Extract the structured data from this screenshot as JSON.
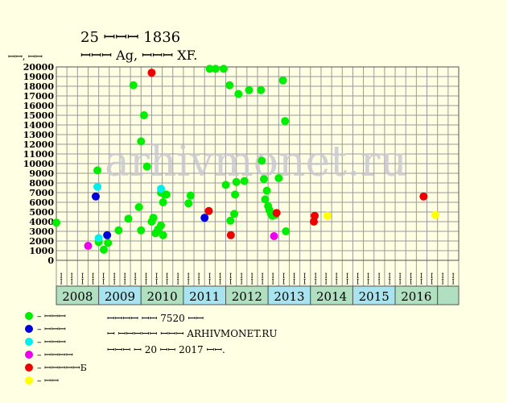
{
  "header": {
    "title": "25 ꟷꟷꟷ 1836",
    "subtitle": "ꟷꟷꟷ Ag, ꟷꟷꟷ XF.",
    "ylabel": "ꟷꟷ, ꟷꟷ"
  },
  "watermark": "arhivmonet.ru",
  "footer": {
    "line1": "ꟷꟷꟷꟷ ꟷꟷ 7520 ꟷꟷ",
    "line2": "ꟷ ꟷꟷꟷꟷꟷ ꟷꟷꟷ ARHIVMONET.RU",
    "line3": "ꟷꟷꟷ ꟷ 20 ꟷꟷ 2017 ꟷꟷ."
  },
  "legend": [
    {
      "key": "g",
      "label": "– ꟷꟷꟷ",
      "color": "#00ee00"
    },
    {
      "key": "b",
      "label": "– ꟷꟷꟷ",
      "color": "#0000dd"
    },
    {
      "key": "c",
      "label": "– ꟷꟷꟷ",
      "color": "#00eeee"
    },
    {
      "key": "m",
      "label": "– ꟷꟷꟷꟷ",
      "color": "#ee00ee"
    },
    {
      "key": "r",
      "label": "– ꟷꟷꟷꟷꟷБ",
      "color": "#ee0000"
    },
    {
      "key": "y",
      "label": "– ꟷꟷ",
      "color": "#ffff00"
    }
  ],
  "chart_data": {
    "type": "scatter",
    "ylim": [
      0,
      20000
    ],
    "yticks": [
      "0",
      "1000",
      "2000",
      "3000",
      "4000",
      "5000",
      "6000",
      "7000",
      "8000",
      "9000",
      "10000",
      "11000",
      "12000",
      "13000",
      "14000",
      "15000",
      "16000",
      "17000",
      "18000",
      "19000",
      "20000"
    ],
    "x_range": [
      2007.5,
      2017.0
    ],
    "month_labels": [
      "ꟷꟷ",
      "ꟷꟷ",
      "ꟷꟷ",
      "ꟷꟷ",
      "ꟷꟷ",
      "ꟷꟷ",
      "ꟷꟷ",
      "ꟷꟷ",
      "ꟷꟷ",
      "ꟷꟷ",
      "ꟷꟷ",
      "ꟷꟷ",
      "ꟷꟷ",
      "ꟷꟷ",
      "ꟷꟷ",
      "ꟷꟷ",
      "ꟷꟷ",
      "ꟷꟷ",
      "ꟷꟷ",
      "ꟷꟷ",
      "ꟷꟷ",
      "ꟷꟷ",
      "ꟷꟷ",
      "ꟷꟷ",
      "ꟷꟷ",
      "ꟷꟷ",
      "ꟷꟷ",
      "ꟷꟷ",
      "ꟷꟷ",
      "ꟷꟷ",
      "ꟷꟷ",
      "ꟷꟷ",
      "ꟷꟷ",
      "ꟷꟷ",
      "ꟷꟷ",
      "ꟷꟷ",
      "ꟷꟷ",
      "ꟷꟷ"
    ],
    "years": [
      {
        "label": "2008",
        "start": 2007.5,
        "end": 2008.5,
        "color": "#b0e0c0"
      },
      {
        "label": "2009",
        "start": 2008.5,
        "end": 2009.5,
        "color": "#a8e4f0"
      },
      {
        "label": "2010",
        "start": 2009.5,
        "end": 2010.5,
        "color": "#b0e0c0"
      },
      {
        "label": "2011",
        "start": 2010.5,
        "end": 2011.5,
        "color": "#a8e4f0"
      },
      {
        "label": "2012",
        "start": 2011.5,
        "end": 2012.5,
        "color": "#b0e0c0"
      },
      {
        "label": "2013",
        "start": 2012.5,
        "end": 2013.5,
        "color": "#a8e4f0"
      },
      {
        "label": "2014",
        "start": 2013.5,
        "end": 2014.5,
        "color": "#b0e0c0"
      },
      {
        "label": "2015",
        "start": 2014.5,
        "end": 2015.5,
        "color": "#a8e4f0"
      },
      {
        "label": "2016",
        "start": 2015.5,
        "end": 2016.5,
        "color": "#b0e0c0"
      },
      {
        "label": "",
        "start": 2016.5,
        "end": 2017.0,
        "color": "#b0e0c0"
      }
    ],
    "series": [
      {
        "key": "g",
        "points": [
          [
            2007.5,
            3900
          ],
          [
            2008.47,
            9300
          ],
          [
            2008.5,
            1900
          ],
          [
            2008.62,
            1100
          ],
          [
            2008.72,
            1800
          ],
          [
            2008.97,
            3100
          ],
          [
            2009.2,
            4300
          ],
          [
            2009.32,
            18100
          ],
          [
            2009.45,
            5500
          ],
          [
            2009.5,
            12300
          ],
          [
            2009.5,
            3100
          ],
          [
            2009.57,
            15000
          ],
          [
            2009.64,
            9700
          ],
          [
            2009.75,
            4000
          ],
          [
            2009.79,
            4400
          ],
          [
            2009.84,
            2800
          ],
          [
            2009.9,
            3200
          ],
          [
            2009.97,
            3600
          ],
          [
            2009.97,
            7000
          ],
          [
            2010.02,
            6000
          ],
          [
            2010.02,
            2600
          ],
          [
            2010.06,
            6800
          ],
          [
            2010.1,
            6800
          ],
          [
            2010.62,
            5900
          ],
          [
            2010.67,
            6700
          ],
          [
            2011.12,
            19800
          ],
          [
            2011.26,
            19800
          ],
          [
            2011.45,
            19800
          ],
          [
            2011.5,
            7800
          ],
          [
            2011.59,
            18100
          ],
          [
            2011.61,
            4100
          ],
          [
            2011.7,
            4800
          ],
          [
            2011.72,
            6800
          ],
          [
            2011.75,
            8100
          ],
          [
            2011.8,
            17200
          ],
          [
            2011.94,
            8200
          ],
          [
            2012.05,
            17600
          ],
          [
            2012.33,
            17600
          ],
          [
            2012.35,
            10300
          ],
          [
            2012.4,
            8400
          ],
          [
            2012.43,
            6300
          ],
          [
            2012.47,
            7200
          ],
          [
            2012.5,
            5600
          ],
          [
            2012.53,
            5200
          ],
          [
            2012.57,
            4800
          ],
          [
            2012.6,
            4600
          ],
          [
            2012.67,
            4700
          ],
          [
            2012.75,
            8500
          ],
          [
            2012.85,
            18600
          ],
          [
            2012.9,
            14400
          ],
          [
            2012.92,
            3000
          ]
        ]
      },
      {
        "key": "b",
        "points": [
          [
            2008.43,
            6600
          ],
          [
            2008.7,
            2600
          ],
          [
            2011.0,
            4400
          ]
        ]
      },
      {
        "key": "c",
        "points": [
          [
            2008.47,
            7600
          ],
          [
            2008.5,
            2300
          ],
          [
            2009.97,
            7400
          ]
        ]
      },
      {
        "key": "m",
        "points": [
          [
            2008.25,
            1500
          ],
          [
            2012.64,
            2500
          ]
        ]
      },
      {
        "key": "r",
        "points": [
          [
            2009.75,
            19400
          ],
          [
            2011.1,
            5100
          ],
          [
            2011.62,
            2600
          ],
          [
            2012.7,
            4900
          ],
          [
            2013.58,
            4000
          ],
          [
            2013.6,
            4600
          ],
          [
            2016.17,
            6600
          ]
        ]
      },
      {
        "key": "y",
        "points": [
          [
            2013.9,
            4600
          ],
          [
            2016.45,
            4700
          ]
        ]
      }
    ]
  }
}
